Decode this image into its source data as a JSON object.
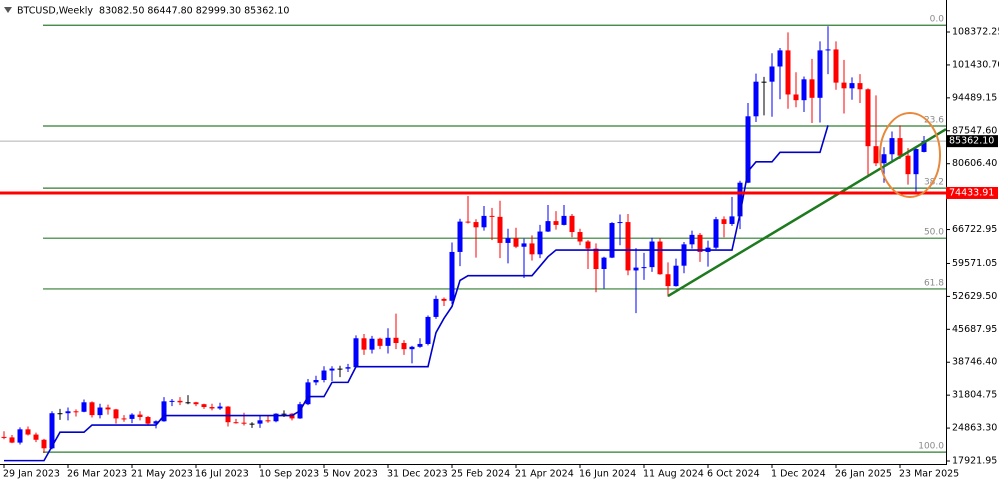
{
  "chart_data": {
    "type": "candlestick",
    "title": "BTCUSD,Weekly  83082.50 86447.80 82999.30 85362.10",
    "up_color": "#0000ff",
    "down_color": "#ff0000",
    "categories": [
      "29 Jan 2023",
      null,
      null,
      null,
      null,
      null,
      null,
      null,
      "26 Mar 2023",
      null,
      null,
      null,
      null,
      null,
      null,
      null,
      "21 May 2023",
      null,
      null,
      null,
      null,
      null,
      null,
      null,
      "16 Jul 2023",
      null,
      null,
      null,
      null,
      null,
      null,
      null,
      "10 Sep 2023",
      null,
      null,
      null,
      null,
      null,
      null,
      null,
      "5 Nov 2023",
      null,
      null,
      null,
      null,
      null,
      null,
      null,
      "31 Dec 2023",
      null,
      null,
      null,
      null,
      null,
      null,
      null,
      "25 Feb 2024",
      null,
      null,
      null,
      null,
      null,
      null,
      null,
      "21 Apr 2024",
      null,
      null,
      null,
      null,
      null,
      null,
      null,
      "16 Jun 2024",
      null,
      null,
      null,
      null,
      null,
      null,
      null,
      "11 Aug 2024",
      null,
      null,
      null,
      null,
      null,
      null,
      null,
      "6 Oct 2024",
      null,
      null,
      null,
      null,
      null,
      null,
      null,
      "1 Dec 2024",
      null,
      null,
      null,
      null,
      null,
      null,
      null,
      "26 Jan 2025",
      null,
      null,
      null,
      null,
      null,
      null,
      null,
      "23 Mar 2025",
      null,
      null,
      null
    ],
    "open": [
      23000,
      22900,
      21800,
      24600,
      23500,
      22400,
      20600,
      28000,
      28000,
      28400,
      28300,
      30300,
      27600,
      29200,
      28800,
      26900,
      26800,
      27700,
      27200,
      25800,
      26300,
      30500,
      30600,
      30300,
      30300,
      29900,
      29300,
      29000,
      29400,
      26100,
      26000,
      25800,
      25800,
      26500,
      26300,
      27900,
      27900,
      26900,
      29900,
      34500,
      35000,
      37000,
      37400,
      37400,
      37700,
      43800,
      41400,
      43700,
      42200,
      43900,
      42800,
      41500,
      42000,
      42600,
      48300,
      52100,
      51700,
      62000,
      68400,
      68300,
      67200,
      69600,
      69400,
      63900,
      64900,
      63100,
      63800,
      61500,
      66300,
      68500,
      67700,
      69600,
      66200,
      64200,
      62700,
      58400,
      60800,
      68100,
      68300,
      58100,
      58700,
      58800,
      64200,
      57300,
      54800,
      59100,
      63600,
      65600,
      62000,
      62900,
      68900,
      67900,
      69500,
      76600,
      90600,
      97900,
      97900,
      101100,
      104500,
      95200,
      94000,
      98400,
      94500,
      104500,
      104700,
      97700,
      96500,
      97600,
      96300,
      84300,
      80700,
      82600,
      86000,
      82300,
      78400,
      83082.5
    ],
    "high": [
      24200,
      23400,
      25000,
      25200,
      23900,
      22600,
      28400,
      28900,
      29200,
      28800,
      30900,
      30500,
      30000,
      29800,
      28900,
      27600,
      28000,
      28400,
      27400,
      26500,
      31400,
      31000,
      31400,
      31800,
      30400,
      30000,
      30000,
      30200,
      29500,
      26800,
      28100,
      26100,
      27400,
      27400,
      28000,
      28600,
      28000,
      30400,
      35200,
      35900,
      37900,
      37900,
      38000,
      38400,
      44400,
      44700,
      44300,
      43900,
      45900,
      49000,
      43400,
      42200,
      43800,
      48600,
      52800,
      52400,
      64000,
      69000,
      73800,
      68900,
      71700,
      71300,
      72800,
      66900,
      67100,
      64800,
      65500,
      67700,
      71900,
      70600,
      71900,
      70000,
      66900,
      64500,
      63800,
      61000,
      68300,
      69900,
      70000,
      62800,
      61800,
      65000,
      64900,
      59800,
      60600,
      64100,
      66500,
      66000,
      64400,
      69400,
      69500,
      73600,
      77000,
      93400,
      99600,
      98900,
      103900,
      105000,
      108300,
      99900,
      99000,
      102700,
      106400,
      109600,
      106400,
      102500,
      98800,
      99500,
      96500,
      95000,
      84100,
      87400,
      88700,
      83900,
      84000,
      86447.8
    ],
    "low": [
      22500,
      21700,
      21400,
      23300,
      21900,
      19600,
      20400,
      26600,
      26500,
      27300,
      28200,
      27100,
      26900,
      27700,
      25800,
      26200,
      25900,
      26500,
      25400,
      24800,
      26200,
      29500,
      29700,
      29900,
      29500,
      28900,
      28600,
      28700,
      25200,
      25800,
      25400,
      24900,
      24900,
      26000,
      26100,
      27200,
      26500,
      26800,
      29700,
      33900,
      34500,
      34800,
      35600,
      36700,
      37600,
      40300,
      40600,
      41500,
      40600,
      41500,
      40300,
      38500,
      41800,
      42300,
      47900,
      50600,
      51000,
      59000,
      68000,
      60800,
      66500,
      64500,
      60700,
      59600,
      62800,
      56500,
      60200,
      60700,
      66200,
      66700,
      67600,
      65100,
      63400,
      58400,
      53500,
      54300,
      60700,
      63400,
      57100,
      49100,
      56100,
      57800,
      57200,
      52600,
      54700,
      57500,
      62700,
      59900,
      58900,
      62600,
      65100,
      67500,
      66800,
      76500,
      89400,
      90800,
      90500,
      94200,
      92200,
      92500,
      91500,
      89200,
      89300,
      99500,
      96200,
      91200,
      94100,
      93400,
      78200,
      80100,
      76600,
      81200,
      81600,
      76200,
      74500,
      82999.3
    ],
    "close": [
      22900,
      21800,
      24600,
      23500,
      22400,
      20600,
      28000,
      28000,
      28400,
      28300,
      30300,
      27600,
      29200,
      28800,
      26900,
      26800,
      27700,
      27200,
      25800,
      26300,
      30500,
      30600,
      30300,
      30300,
      29900,
      29300,
      29000,
      29400,
      26100,
      26000,
      25800,
      25800,
      26500,
      26300,
      27900,
      27900,
      26900,
      29900,
      34500,
      35000,
      37000,
      37400,
      37400,
      37700,
      43800,
      41400,
      43700,
      42200,
      43900,
      42800,
      41500,
      42000,
      42600,
      48300,
      52100,
      51700,
      62000,
      68400,
      68300,
      67200,
      69600,
      69400,
      63900,
      64900,
      63100,
      63800,
      61500,
      66300,
      68500,
      67700,
      69600,
      66200,
      64200,
      62700,
      58400,
      60800,
      68100,
      68300,
      58100,
      58700,
      58800,
      64200,
      57300,
      54800,
      59100,
      63600,
      65600,
      62000,
      62900,
      68900,
      67900,
      69500,
      76600,
      90600,
      97900,
      97900,
      101100,
      104500,
      95200,
      94000,
      98400,
      94500,
      104500,
      104700,
      97700,
      96500,
      97600,
      96300,
      84300,
      80700,
      82600,
      86000,
      82300,
      78400,
      83700,
      85362.1
    ],
    "indicator": {
      "color": "#0000cd",
      "values": [
        18000,
        18000,
        18000,
        18000,
        18000,
        18000,
        21000,
        24000,
        24000,
        24000,
        24000,
        25500,
        25500,
        25500,
        25500,
        25500,
        25500,
        25500,
        25500,
        25500,
        27500,
        27500,
        27500,
        27500,
        27500,
        27500,
        27500,
        27500,
        27500,
        27500,
        27500,
        27500,
        27500,
        27500,
        27500,
        27500,
        27500,
        28500,
        31500,
        31500,
        31500,
        34500,
        34500,
        34500,
        37800,
        37800,
        37800,
        37800,
        37800,
        37800,
        37800,
        37800,
        37800,
        37800,
        45000,
        48000,
        50500,
        56000,
        57000,
        57000,
        57000,
        57000,
        57000,
        57000,
        57000,
        57000,
        57000,
        59000,
        61000,
        62400,
        62400,
        62400,
        62400,
        62400,
        62400,
        62400,
        62400,
        62400,
        62400,
        62400,
        62400,
        62400,
        62400,
        62400,
        62400,
        62400,
        62400,
        62400,
        62400,
        62400,
        62400,
        62400,
        70000,
        79000,
        81000,
        81000,
        81000,
        83000,
        83000,
        83000,
        83000,
        83000,
        83000,
        88700,
        null,
        null,
        null,
        null,
        null,
        null,
        null,
        null,
        null,
        null,
        null,
        null
      ]
    },
    "fib_color": "#2e7d32",
    "fib_levels": [
      {
        "value": 109800,
        "label": "0.0"
      },
      {
        "value": 88560,
        "label": "23.6"
      },
      {
        "value": 75460,
        "label": "38.2"
      },
      {
        "value": 64900,
        "label": "50.0"
      },
      {
        "value": 54200,
        "label": "61.8"
      },
      {
        "value": 19800,
        "label": "100.0"
      }
    ],
    "trendline": {
      "color": "#1e7a1e",
      "points": [
        [
          83,
          52700
        ],
        [
          115,
          85100
        ]
      ]
    },
    "price_line": {
      "value": 85362.1,
      "label": "85362.10",
      "color": "#000000"
    },
    "support_line": {
      "value": 74433.91,
      "label": "74433.91",
      "color": "#ff0000"
    },
    "ylim": [
      17290,
      114700
    ],
    "yticks": [
      17921.95,
      {
        "value": 24863.3,
        "label": "24863.30"
      },
      31804.75,
      {
        "value": 38746.4,
        "label": "38746.40"
      },
      45687.95,
      {
        "value": 52629.5,
        "label": "52629.50"
      },
      59571.05,
      66722.95,
      {
        "value": 80606.4,
        "label": "80606.40"
      },
      {
        "value": 87547.6,
        "label": "87547.60"
      },
      94489.15,
      {
        "value": 101430.7,
        "label": "101430.70"
      },
      108372.25
    ]
  }
}
